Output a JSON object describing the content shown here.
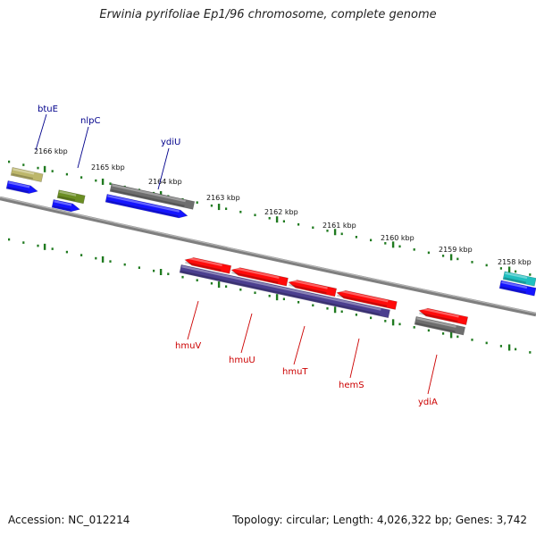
{
  "title": "Erwinia pyrifoliae Ep1/96 chromosome, complete genome",
  "footer": {
    "accession": "Accession: NC_012214",
    "summary": "Topology: circular; Length: 4,026,322 bp; Genes: 3,742"
  },
  "colors": {
    "backbone": "#7f7f7f",
    "tick": "#1f7a1f",
    "label_forward": "#00008b",
    "label_reverse": "#cc0000",
    "gene_blue": "#1515ff",
    "gene_red": "#ff0b0b",
    "gene_gray": "#6e6e6e",
    "gene_olive": "#6b8e23",
    "gene_khaki": "#bdb76b",
    "gene_purple": "#4b3f8f",
    "gene_cyan": "#20c0c0"
  },
  "kbp_markers": [
    "2166 kbp",
    "2165 kbp",
    "2164 kbp",
    "2163 kbp",
    "2162 kbp",
    "2161 kbp",
    "2160 kbp",
    "2159 kbp",
    "2158 kbp"
  ],
  "gene_labels_forward": [
    "btuE",
    "nlpC",
    "ydiU"
  ],
  "gene_labels_reverse": [
    "hmuV",
    "hmuU",
    "hmuT",
    "hemS",
    "ydiA"
  ]
}
